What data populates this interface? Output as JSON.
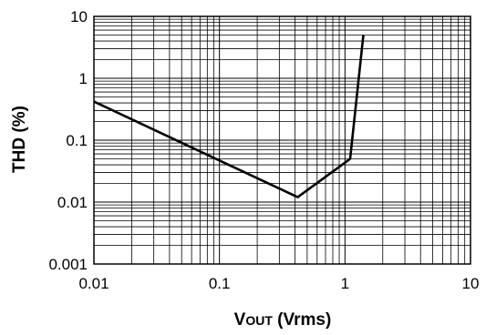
{
  "chart_data": {
    "type": "line",
    "title": "",
    "xlabel": "VOUT (Vrms)",
    "xlabel_main": "V",
    "xlabel_sub": "OUT",
    "xlabel_unit": " (Vrms)",
    "ylabel": "THD (%)",
    "x_scale": "log",
    "y_scale": "log",
    "xlim": [
      0.01,
      10
    ],
    "ylim": [
      0.001,
      10
    ],
    "grid": true,
    "x_ticks": [
      "0.01",
      "0.1",
      "1",
      "10"
    ],
    "y_ticks": [
      "0.001",
      "0.01",
      "0.1",
      "1",
      "10"
    ],
    "series": [
      {
        "name": "",
        "color": "#000000",
        "x": [
          0.01,
          0.42,
          1.1,
          1.4
        ],
        "y": [
          0.42,
          0.012,
          0.05,
          5
        ]
      }
    ]
  }
}
